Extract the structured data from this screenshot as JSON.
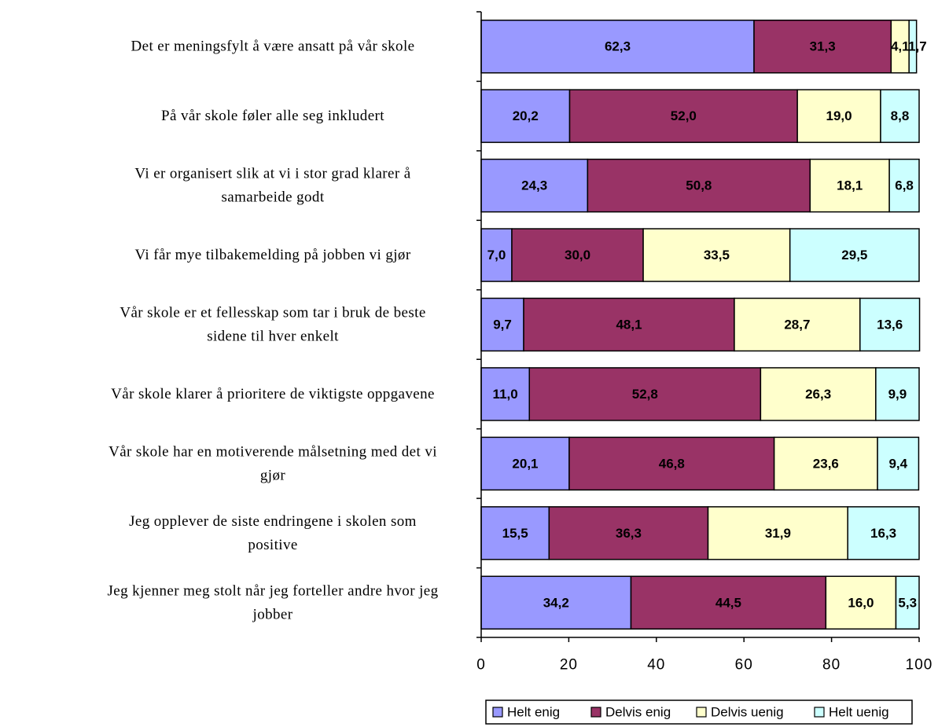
{
  "chart_data": {
    "type": "bar",
    "orientation": "horizontal",
    "stacked": true,
    "categories": [
      "Det er meningsfylt å være ansatt på vår skole",
      "På vår skole føler alle seg inkludert",
      "Vi er organisert slik at vi i stor grad klarer å samarbeide godt",
      "Vi får mye tilbakemelding på jobben vi gjør",
      "Vår skole er et fellesskap som tar i bruk de beste sidene til hver enkelt",
      "Vår skole klarer å prioritere de viktigste oppgavene",
      "Vår skole har en motiverende målsetning med det vi gjør",
      "Jeg opplever de siste endringene i skolen som positive",
      "Jeg kjenner meg stolt når jeg forteller andre hvor jeg jobber"
    ],
    "category_lines": [
      [
        "Det er meningsfylt å være ansatt på vår skole"
      ],
      [
        "På vår skole føler alle seg inkludert"
      ],
      [
        "Vi er organisert slik at vi i stor grad klarer å",
        "samarbeide godt"
      ],
      [
        "Vi får mye tilbakemelding på jobben vi gjør"
      ],
      [
        "Vår skole er et fellesskap som tar i bruk de beste",
        "sidene til hver enkelt"
      ],
      [
        "Vår skole klarer å prioritere de viktigste oppgavene"
      ],
      [
        "Vår skole har en motiverende målsetning med det vi",
        "gjør"
      ],
      [
        "Jeg opplever de siste endringene i skolen som",
        "positive"
      ],
      [
        "Jeg kjenner meg stolt når jeg forteller andre hvor jeg",
        "jobber"
      ]
    ],
    "series": [
      {
        "name": "Helt enig",
        "color": "#9999ff",
        "values": [
          62.3,
          20.2,
          24.3,
          7.0,
          9.7,
          11.0,
          20.1,
          15.5,
          34.2
        ]
      },
      {
        "name": "Delvis enig",
        "color": "#993366",
        "values": [
          31.3,
          52.0,
          50.8,
          30.0,
          48.1,
          52.8,
          46.8,
          36.3,
          44.5
        ]
      },
      {
        "name": "Delvis uenig",
        "color": "#ffffcc",
        "values": [
          4.1,
          19.0,
          18.1,
          33.5,
          28.7,
          26.3,
          23.6,
          31.9,
          16.0
        ]
      },
      {
        "name": "Helt uenig",
        "color": "#ccffff",
        "values": [
          1.7,
          8.8,
          6.8,
          29.5,
          13.6,
          9.9,
          9.4,
          16.3,
          5.3
        ]
      }
    ],
    "data_labels": [
      [
        "62,3",
        "31,3",
        "4,1",
        "1,7"
      ],
      [
        "20,2",
        "52,0",
        "19,0",
        "8,8"
      ],
      [
        "24,3",
        "50,8",
        "18,1",
        "6,8"
      ],
      [
        "7,0",
        "30,0",
        "33,5",
        "29,5"
      ],
      [
        "9,7",
        "48,1",
        "28,7",
        "13,6"
      ],
      [
        "11,0",
        "52,8",
        "26,3",
        "9,9"
      ],
      [
        "20,1",
        "46,8",
        "23,6",
        "9,4"
      ],
      [
        "15,5",
        "36,3",
        "31,9",
        "16,3"
      ],
      [
        "34,2",
        "44,5",
        "16,0",
        "5,3"
      ]
    ],
    "xlim": [
      0,
      100
    ],
    "xticks": [
      0,
      20,
      40,
      60,
      80,
      100
    ],
    "xtick_labels": [
      "0",
      "20",
      "40",
      "60",
      "80",
      "100"
    ],
    "grid": false,
    "legend_position": "bottom",
    "title": "",
    "xlabel": "",
    "ylabel": ""
  }
}
